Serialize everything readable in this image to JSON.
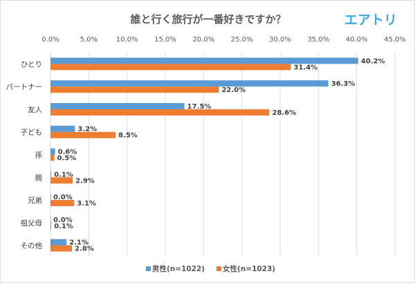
{
  "logo_text": "エアトリ",
  "colors": {
    "male": "#5b9bd5",
    "female": "#ed7d31",
    "logo": "#3fa9e0",
    "grid": "#d9d9d9",
    "text": "#595959"
  },
  "chart_data": {
    "type": "bar",
    "orientation": "horizontal",
    "title": "誰と行く旅行が一番好きですか？",
    "xlim": [
      0,
      45
    ],
    "xticks": [
      "0.0%",
      "5.0%",
      "10.0%",
      "15.0%",
      "20.0%",
      "25.0%",
      "30.0%",
      "35.0%",
      "40.0%",
      "45.0%"
    ],
    "categories": [
      "ひとり",
      "パートナー",
      "友人",
      "子ども",
      "孫",
      "親",
      "兄弟",
      "祖父母",
      "その他"
    ],
    "series": [
      {
        "name": "男性(n=1022)",
        "values": [
          40.2,
          36.3,
          17.5,
          3.2,
          0.6,
          0.1,
          0.0,
          0.0,
          2.1
        ]
      },
      {
        "name": "女性(n=1023)",
        "values": [
          31.4,
          22.0,
          28.6,
          8.5,
          0.5,
          2.9,
          3.1,
          0.1,
          2.8
        ]
      }
    ],
    "grid": true,
    "legend": "bottom"
  }
}
